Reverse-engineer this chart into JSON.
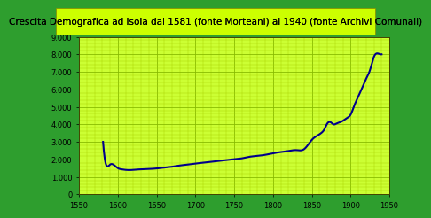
{
  "title": "Crescita Demografica ad Isola dal 1581 (fonte Morteani) al 1940 (fonte Archivi Comunali)",
  "title_fontsize": 7.5,
  "title_color": "#000000",
  "title_bg": "#ccff00",
  "background_color": "#2e9e2e",
  "plot_bg": "#ccff33",
  "line_color": "#00008b",
  "line_width": 1.5,
  "xlim": [
    1550,
    1950
  ],
  "ylim": [
    0,
    9000
  ],
  "xticks": [
    1550,
    1600,
    1650,
    1700,
    1750,
    1800,
    1850,
    1900,
    1950
  ],
  "yticks": [
    0,
    1000,
    2000,
    3000,
    4000,
    5000,
    6000,
    7000,
    8000,
    9000
  ],
  "ytick_labels": [
    "0",
    "1.000",
    "2.000",
    "3.000",
    "4.000",
    "5.000",
    "6.000",
    "7.000",
    "8.000",
    "9.000"
  ],
  "grid_color": "#88bb00",
  "grid_minor_color": "#aad000",
  "data_x": [
    1581,
    1583,
    1590,
    1600,
    1605,
    1610,
    1615,
    1620,
    1625,
    1630,
    1640,
    1650,
    1660,
    1670,
    1680,
    1690,
    1700,
    1710,
    1720,
    1730,
    1740,
    1750,
    1760,
    1770,
    1780,
    1790,
    1800,
    1810,
    1820,
    1830,
    1840,
    1848,
    1852,
    1857,
    1862,
    1866,
    1870,
    1875,
    1878,
    1882,
    1888,
    1895,
    1900,
    1905,
    1910,
    1915,
    1920,
    1925,
    1930,
    1935,
    1940
  ],
  "data_y": [
    3000,
    2100,
    1700,
    1500,
    1430,
    1400,
    1390,
    1400,
    1420,
    1430,
    1450,
    1480,
    1530,
    1580,
    1650,
    1700,
    1760,
    1810,
    1860,
    1910,
    1960,
    2010,
    2060,
    2150,
    2200,
    2260,
    2350,
    2420,
    2480,
    2530,
    2580,
    3000,
    3200,
    3350,
    3500,
    3700,
    4050,
    4100,
    4000,
    4050,
    4150,
    4350,
    4550,
    5100,
    5600,
    6100,
    6600,
    7100,
    7850,
    8050,
    8000
  ]
}
